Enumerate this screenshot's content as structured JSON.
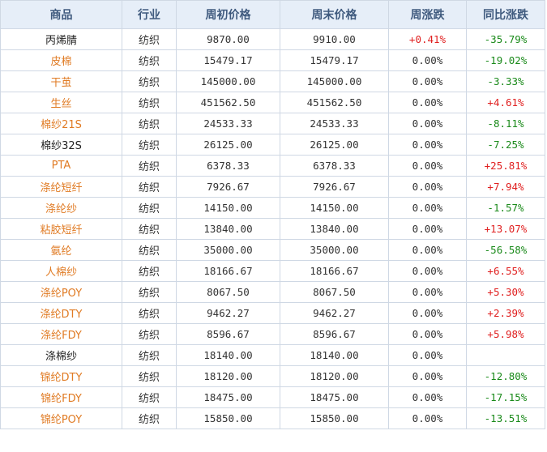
{
  "colors": {
    "header_bg": "#e6eef8",
    "header_text": "#3f5a7e",
    "link": "#e07b24",
    "up": "#e02020",
    "down": "#1a8a1a",
    "border": "#cfd8e4"
  },
  "table": {
    "headers": [
      "商品",
      "行业",
      "周初价格",
      "周末价格",
      "周涨跌",
      "同比涨跌"
    ],
    "rows": [
      {
        "name": "丙烯腈",
        "link": false,
        "industry": "纺织",
        "start": "9870.00",
        "end": "9910.00",
        "week": "+0.41%",
        "week_dir": "up",
        "yoy": "-35.79%",
        "yoy_dir": "down"
      },
      {
        "name": "皮棉",
        "link": true,
        "industry": "纺织",
        "start": "15479.17",
        "end": "15479.17",
        "week": "0.00%",
        "week_dir": "flat",
        "yoy": "-19.02%",
        "yoy_dir": "down"
      },
      {
        "name": "干茧",
        "link": true,
        "industry": "纺织",
        "start": "145000.00",
        "end": "145000.00",
        "week": "0.00%",
        "week_dir": "flat",
        "yoy": "-3.33%",
        "yoy_dir": "down"
      },
      {
        "name": "生丝",
        "link": true,
        "industry": "纺织",
        "start": "451562.50",
        "end": "451562.50",
        "week": "0.00%",
        "week_dir": "flat",
        "yoy": "+4.61%",
        "yoy_dir": "up"
      },
      {
        "name": "棉纱21S",
        "link": true,
        "industry": "纺织",
        "start": "24533.33",
        "end": "24533.33",
        "week": "0.00%",
        "week_dir": "flat",
        "yoy": "-8.11%",
        "yoy_dir": "down"
      },
      {
        "name": "棉纱32S",
        "link": false,
        "industry": "纺织",
        "start": "26125.00",
        "end": "26125.00",
        "week": "0.00%",
        "week_dir": "flat",
        "yoy": "-7.25%",
        "yoy_dir": "down"
      },
      {
        "name": "PTA",
        "link": true,
        "industry": "纺织",
        "start": "6378.33",
        "end": "6378.33",
        "week": "0.00%",
        "week_dir": "flat",
        "yoy": "+25.81%",
        "yoy_dir": "up"
      },
      {
        "name": "涤纶短纤",
        "link": true,
        "industry": "纺织",
        "start": "7926.67",
        "end": "7926.67",
        "week": "0.00%",
        "week_dir": "flat",
        "yoy": "+7.94%",
        "yoy_dir": "up"
      },
      {
        "name": "涤纶纱",
        "link": true,
        "industry": "纺织",
        "start": "14150.00",
        "end": "14150.00",
        "week": "0.00%",
        "week_dir": "flat",
        "yoy": "-1.57%",
        "yoy_dir": "down"
      },
      {
        "name": "粘胶短纤",
        "link": true,
        "industry": "纺织",
        "start": "13840.00",
        "end": "13840.00",
        "week": "0.00%",
        "week_dir": "flat",
        "yoy": "+13.07%",
        "yoy_dir": "up"
      },
      {
        "name": "氨纶",
        "link": true,
        "industry": "纺织",
        "start": "35000.00",
        "end": "35000.00",
        "week": "0.00%",
        "week_dir": "flat",
        "yoy": "-56.58%",
        "yoy_dir": "down"
      },
      {
        "name": "人棉纱",
        "link": true,
        "industry": "纺织",
        "start": "18166.67",
        "end": "18166.67",
        "week": "0.00%",
        "week_dir": "flat",
        "yoy": "+6.55%",
        "yoy_dir": "up"
      },
      {
        "name": "涤纶POY",
        "link": true,
        "industry": "纺织",
        "start": "8067.50",
        "end": "8067.50",
        "week": "0.00%",
        "week_dir": "flat",
        "yoy": "+5.30%",
        "yoy_dir": "up"
      },
      {
        "name": "涤纶DTY",
        "link": true,
        "industry": "纺织",
        "start": "9462.27",
        "end": "9462.27",
        "week": "0.00%",
        "week_dir": "flat",
        "yoy": "+2.39%",
        "yoy_dir": "up"
      },
      {
        "name": "涤纶FDY",
        "link": true,
        "industry": "纺织",
        "start": "8596.67",
        "end": "8596.67",
        "week": "0.00%",
        "week_dir": "flat",
        "yoy": "+5.98%",
        "yoy_dir": "up"
      },
      {
        "name": "涤棉纱",
        "link": false,
        "industry": "纺织",
        "start": "18140.00",
        "end": "18140.00",
        "week": "0.00%",
        "week_dir": "flat",
        "yoy": "",
        "yoy_dir": "flat"
      },
      {
        "name": "锦纶DTY",
        "link": true,
        "industry": "纺织",
        "start": "18120.00",
        "end": "18120.00",
        "week": "0.00%",
        "week_dir": "flat",
        "yoy": "-12.80%",
        "yoy_dir": "down"
      },
      {
        "name": "锦纶FDY",
        "link": true,
        "industry": "纺织",
        "start": "18475.00",
        "end": "18475.00",
        "week": "0.00%",
        "week_dir": "flat",
        "yoy": "-17.15%",
        "yoy_dir": "down"
      },
      {
        "name": "锦纶POY",
        "link": true,
        "industry": "纺织",
        "start": "15850.00",
        "end": "15850.00",
        "week": "0.00%",
        "week_dir": "flat",
        "yoy": "-13.51%",
        "yoy_dir": "down"
      }
    ]
  }
}
